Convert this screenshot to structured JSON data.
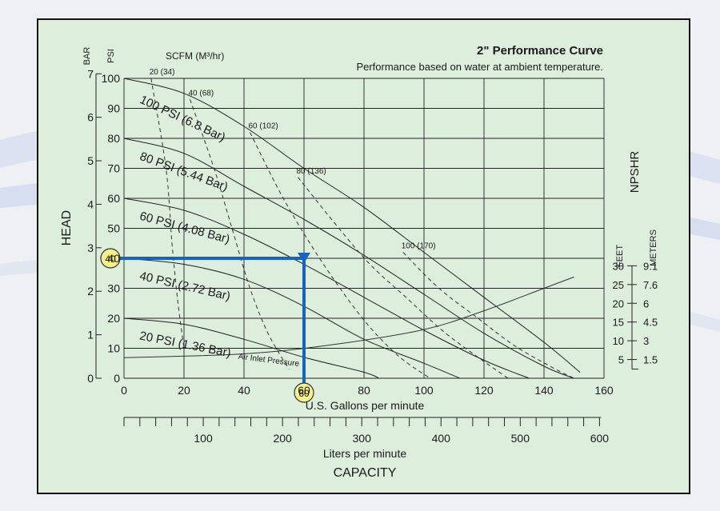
{
  "chart_data": {
    "type": "line",
    "title": "2\" Performance Curve",
    "subtitle": "Performance based on water at ambient temperature.",
    "x_axis": {
      "label": "U.S. Gallons per minute",
      "range": [
        0,
        160
      ],
      "ticks": [
        0,
        20,
        40,
        60,
        80,
        100,
        120,
        140,
        160
      ]
    },
    "x2_axis": {
      "label": "Liters per minute",
      "ticks": [
        "100",
        "200",
        "300",
        "400",
        "500",
        "600"
      ]
    },
    "capacity_label": "CAPACITY",
    "y_axis": {
      "label": "HEAD",
      "psi_unit": "PSI",
      "bar_unit": "BAR",
      "psi_range": [
        0,
        100
      ],
      "psi_ticks": [
        0,
        10,
        20,
        30,
        40,
        50,
        60,
        70,
        80,
        90,
        100
      ],
      "bar_ticks": [
        "0",
        "1",
        "2",
        "3",
        "4",
        "5",
        "6",
        "7"
      ]
    },
    "scfm_label": "SCFM (M³/hr)",
    "npshr": {
      "label": "NPSHR",
      "feet_unit": "FEET",
      "meters_unit": "METERS",
      "feet_ticks": [
        "5",
        "10",
        "15",
        "20",
        "25",
        "30"
      ],
      "meters_ticks": [
        "1.5",
        "3",
        "4.5",
        "6",
        "7.6",
        "9.1"
      ]
    },
    "series": [
      {
        "name": "100 PSI (6.8 Bar)",
        "x": [
          0,
          20,
          40,
          60,
          80,
          100,
          120,
          140,
          152
        ],
        "y": [
          100,
          95,
          84,
          70,
          57,
          42,
          27,
          12,
          2
        ]
      },
      {
        "name": "80 PSI (5.44 Bar)",
        "x": [
          0,
          20,
          40,
          60,
          80,
          100,
          120,
          140,
          150
        ],
        "y": [
          80,
          75,
          64,
          53,
          41,
          28,
          15,
          4,
          0
        ]
      },
      {
        "name": "60 PSI (4.08 Bar)",
        "x": [
          0,
          20,
          40,
          60,
          80,
          100,
          120,
          135
        ],
        "y": [
          60,
          56,
          48,
          38,
          27,
          16,
          6,
          0
        ]
      },
      {
        "name": "40 PSI (2.72 Bar)",
        "x": [
          0,
          20,
          40,
          60,
          80,
          100,
          112
        ],
        "y": [
          40,
          38,
          33,
          24,
          13,
          5,
          0
        ]
      },
      {
        "name": "20 PSI (1.36 Bar)",
        "x": [
          0,
          20,
          40,
          60,
          80,
          85
        ],
        "y": [
          20,
          18,
          13,
          7,
          2,
          0
        ]
      }
    ],
    "air_inlet_pressure": {
      "label": "Air Inlet Pressure"
    },
    "scfm_curves": [
      {
        "label": "20 (34)",
        "x": [
          9,
          14,
          16,
          18,
          20
        ],
        "y": [
          100,
          70,
          45,
          25,
          10
        ]
      },
      {
        "label": "40 (68)",
        "x": [
          22,
          30,
          36,
          42,
          48,
          55
        ],
        "y": [
          93,
          70,
          50,
          30,
          15,
          3
        ]
      },
      {
        "label": "60 (102)",
        "x": [
          42,
          52,
          62,
          72,
          82,
          92,
          102
        ],
        "y": [
          82,
          62,
          45,
          30,
          17,
          7,
          0
        ]
      },
      {
        "label": "80 (136)",
        "x": [
          58,
          70,
          82,
          94,
          106,
          118,
          128
        ],
        "y": [
          67,
          52,
          38,
          27,
          16,
          7,
          0
        ]
      },
      {
        "label": "100 (170)",
        "x": [
          93,
          105,
          118,
          130,
          142,
          150
        ],
        "y": [
          42,
          30,
          20,
          11,
          4,
          0
        ]
      }
    ],
    "npshr_curve": {
      "x": [
        0,
        40,
        70,
        100,
        120,
        140,
        150
      ],
      "npshr_ft": [
        5.5,
        6.5,
        9,
        13,
        18,
        24,
        27
      ]
    },
    "example_marker": {
      "flow": "60",
      "head": "40",
      "x": 60,
      "y": 40
    },
    "grid": true
  }
}
